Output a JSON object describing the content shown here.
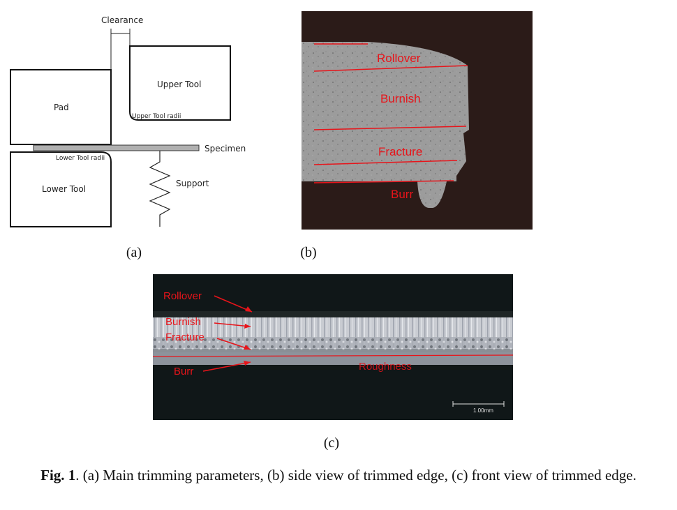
{
  "panel_a": {
    "clearance": "Clearance",
    "upper_tool": "Upper Tool",
    "upper_tool_radii": "Upper Tool radii",
    "pad": "Pad",
    "specimen": "Specimen",
    "lower_tool_radii": "Lower Tool radii",
    "lower_tool": "Lower Tool",
    "support": "Support"
  },
  "panel_b": {
    "labels": [
      "Rollover",
      "Burnish",
      "Fracture",
      "Burr"
    ]
  },
  "panel_c": {
    "labels": [
      "Rollover",
      "Burnish",
      "Fracture",
      "Burr"
    ],
    "roughness": "Roughness",
    "scale_bar": "1.00mm"
  },
  "sublabels": {
    "a": "(a)",
    "b": "(b)",
    "c": "(c)"
  },
  "caption": {
    "fig_label": "Fig. 1",
    "text": ". (a) Main trimming parameters, (b) side view of trimmed edge, (c) front view of trimmed edge."
  },
  "colors": {
    "annotation_red": "#e8141a",
    "micrograph_bg": "#2b1b18"
  }
}
